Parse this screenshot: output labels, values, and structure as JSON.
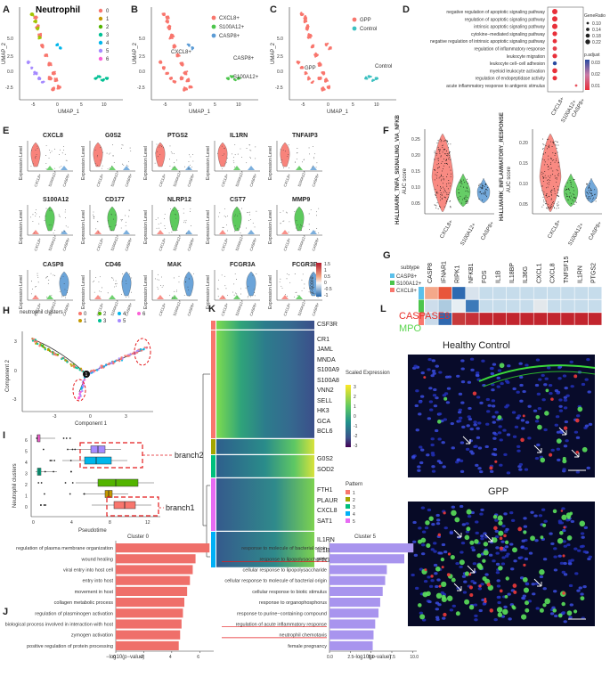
{
  "colors": {
    "c0": "#F8766D",
    "c1": "#C49A00",
    "c2": "#53B400",
    "c3": "#00C094",
    "c4": "#00B6EB",
    "c5": "#A58AFF",
    "c6": "#FB61D7",
    "cxcl8": "#F8766D",
    "s100a12": "#4CC54C",
    "casp8": "#5B9BD5",
    "gpp": "#F8766D",
    "control": "#3CC0C0"
  },
  "panelA": {
    "letter": "A",
    "title": "Neutrophil",
    "xlabel": "UMAP_1",
    "ylabel": "UMAP_2",
    "legend": [
      "0",
      "1",
      "2",
      "3",
      "4",
      "5",
      "6"
    ],
    "xticks": [
      "-5",
      "0",
      "5",
      "10"
    ],
    "yticks": [
      "5.0",
      "2.5",
      "0.0",
      "-2.5"
    ]
  },
  "panelB": {
    "letter": "B",
    "xlabel": "UMAP_1",
    "ylabel": "UMAP_2",
    "legend": [
      "CXCL8+",
      "S100A12+",
      "CASP8+"
    ],
    "labels": [
      "CXCL8+",
      "CASP8+",
      "S100A12+"
    ],
    "xticks": [
      "-5",
      "0",
      "5",
      "10"
    ],
    "yticks": [
      "5.0",
      "2.5",
      "0.0",
      "-2.5"
    ]
  },
  "panelC": {
    "letter": "C",
    "xlabel": "UMAP_1",
    "ylabel": "UMAP_2",
    "legend": [
      "GPP",
      "Control"
    ],
    "labels": [
      "GPP",
      "Control"
    ],
    "xticks": [
      "-5",
      "0",
      "5",
      "10"
    ],
    "yticks": [
      "5.0",
      "2.5",
      "0.0",
      "-2.5"
    ]
  },
  "panelD": {
    "letter": "D",
    "terms": [
      "negative regulation of apoptotic signaling pathway",
      "regulation of apoptotic signaling pathway",
      "intrinsic apoptotic signaling pathway",
      "cytokine−mediated signaling pathway",
      "negative regulation of intrinsic apoptotic signaling pathway",
      "regulation of inflammatory response",
      "leukocyte migration",
      "leukocyte cell−cell adhesion",
      "myeloid leukocyte activation",
      "regulation of endopeptidase activity",
      "acute inflammatory response to antigenic stimulus"
    ],
    "groups": [
      "CXCL8+",
      "S100A12+",
      "CASP8+"
    ],
    "legend_size_title": "GeneRatio",
    "sizes": [
      "0.10",
      "0.14",
      "0.18",
      "0.22"
    ],
    "legend_color_title": "p.adjust",
    "pvals": [
      "0.03",
      "0.02",
      "0.01"
    ]
  },
  "panelE": {
    "letter": "E",
    "ylabel": "Expression Level",
    "groups": [
      "CXCL8+",
      "S100A12+",
      "CASP8+"
    ],
    "genes": [
      "CXCL8",
      "G0S2",
      "PTGS2",
      "IL1RN",
      "TNFAIP3",
      "S100A12",
      "CD177",
      "NLRP12",
      "CST7",
      "MMP9",
      "CASP8",
      "CD46",
      "MAK",
      "FCGR3A",
      "FCGR3B"
    ]
  },
  "panelF": {
    "letter": "F",
    "plots": [
      {
        "title": "HALLMARK_TNFA_SIGNALING_VIA_NFKB",
        "ylabel": "AUC score",
        "yticks": [
          "0.25",
          "0.20",
          "0.15",
          "0.10",
          "0.05"
        ]
      },
      {
        "title": "HALLMARK_INFLAMMATORY_RESPONSE",
        "ylabel": "AUC score",
        "yticks": [
          "0.20",
          "0.15",
          "0.10",
          "0.05"
        ]
      }
    ],
    "groups": [
      "CXCL8+",
      "S100A12+",
      "CASP8+"
    ]
  },
  "panelG": {
    "letter": "G",
    "genes": [
      "CASP8",
      "IFNAR1",
      "RIPK1",
      "NFKB1",
      "FOS",
      "IL1B",
      "IL18BP",
      "IL36G",
      "CXCL1",
      "CXCL8",
      "TNFSF15",
      "IL1RN",
      "PTGS2"
    ],
    "legend_title": "subtype",
    "subtypes": [
      "CASP8+",
      "S100A12+",
      "CXCL8+"
    ],
    "scale_title": "z-score",
    "scale_ticks": [
      "1.5",
      "1",
      "0.5",
      "0",
      "-0.5",
      "-1"
    ]
  },
  "panelH": {
    "letter": "H",
    "legend_title": "neutrophil clusters",
    "legend": [
      "0",
      "1",
      "2",
      "3",
      "4",
      "5",
      "6"
    ],
    "xlabel": "Component 1",
    "ylabel": "Component 2",
    "branch_point": "1",
    "xticks": [
      "-3",
      "0",
      "3"
    ],
    "yticks": [
      "3",
      "0",
      "-3"
    ]
  },
  "panelI": {
    "letter": "I",
    "xlabel": "Pseudotime",
    "ylabel": "Neutrophil clusters",
    "clusters": [
      "6",
      "5",
      "4",
      "3",
      "2",
      "1",
      "0"
    ],
    "branch2": "branch2",
    "branch1": "branch1",
    "xticks": [
      "0",
      "4",
      "8",
      "12"
    ]
  },
  "panelK": {
    "letter": "K",
    "genes": [
      "CSF3R",
      "CR1",
      "JAML",
      "MNDA",
      "S100A9",
      "S100A8",
      "VNN2",
      "SELL",
      "HK3",
      "GCA",
      "BCL6",
      "G0S2",
      "SOD2",
      "FTH1",
      "PLAUR",
      "CXCL8",
      "SAT1",
      "IL1RN",
      "IL1B",
      "PTGS2"
    ],
    "scale_title": "Scaled Expression",
    "scale_ticks": [
      "3",
      "2",
      "1",
      "0",
      "-1",
      "-2",
      "-3"
    ],
    "pattern_title": "Pattern",
    "patterns": [
      "1",
      "2",
      "3",
      "4",
      "5"
    ]
  },
  "panelL": {
    "letter": "L",
    "stain1": "CASPASE8",
    "stain2": "MPO",
    "image1_title": "Healthy Control",
    "image2_title": "GPP"
  },
  "panelJ": {
    "letter": "J",
    "xlabel": "−log10(p−value)",
    "cluster0": {
      "title": "Cluster 0",
      "terms": [
        "regulation of plasma membrane organization",
        "wound healing",
        "viral entry into host cell",
        "entry into host",
        "movement in host",
        "collagen metabolic process",
        "regulation of plasminogen activation",
        "biological process involved in interaction with host",
        "zymogen activation",
        "positive regulation of protein processing"
      ],
      "values": [
        6.7,
        5.7,
        5.5,
        5.3,
        5.1,
        4.9,
        4.8,
        4.7,
        4.6,
        4.5
      ],
      "xticks": [
        "0",
        "2",
        "4",
        "6"
      ],
      "xmax": 7
    },
    "cluster5": {
      "title": "Cluster 5",
      "terms": [
        "response to molecule of bacterial origin",
        "response to lipopolysaccharide",
        "cellular response to lipopolysaccharide",
        "cellular response to molecule of bacterial origin",
        "cellular response to biotic stimulus",
        "response to organophosphorus",
        "response to purine−containing compound",
        "regulation of acute inflammatory response",
        "neutrophil chemotaxis",
        "female pregnancy"
      ],
      "values": [
        10.1,
        9.0,
        6.9,
        6.7,
        6.4,
        6.1,
        5.9,
        5.5,
        5.3,
        5.2
      ],
      "xticks": [
        "0.0",
        "2.5",
        "5.0",
        "7.5",
        "10.0"
      ],
      "xmax": 10.5
    }
  }
}
